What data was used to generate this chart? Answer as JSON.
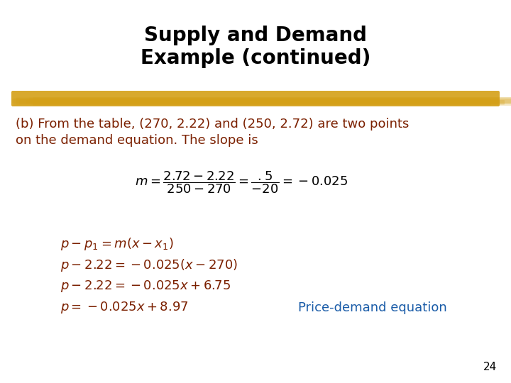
{
  "title_line1": "Supply and Demand",
  "title_line2": "Example (continued)",
  "title_color": "#000000",
  "title_fontsize": 20,
  "highlight_color": "#D4A017",
  "body_text_color": "#7B2000",
  "body_fontsize": 13,
  "formula_color": "#000000",
  "formula_fontsize": 13,
  "steps_color": "#7B2000",
  "steps_fontsize": 13,
  "price_demand_color": "#1A5CA8",
  "price_demand_fontsize": 13,
  "page_number": "24",
  "background_color": "#FFFFFF",
  "intro_text_line1": "(b) From the table, (270, 2.22) and (250, 2.72) are two points",
  "intro_text_line2": "on the demand equation. The slope is"
}
